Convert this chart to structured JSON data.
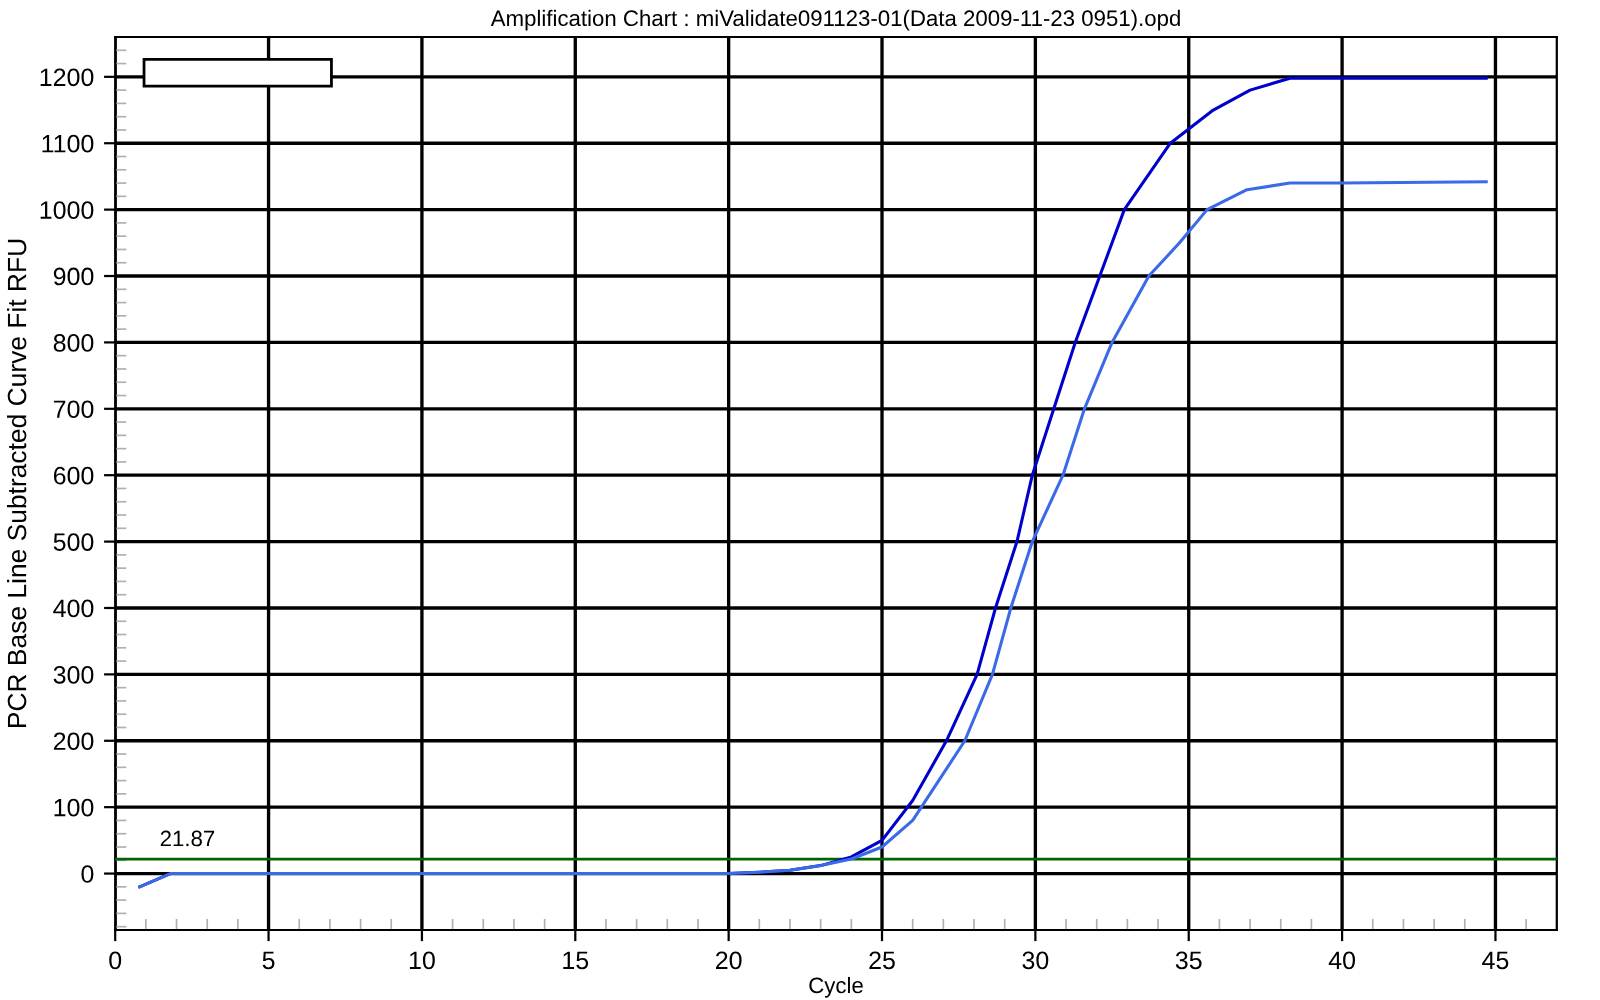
{
  "chart_data": {
    "type": "line",
    "title": "Amplification Chart : miValidate091123-01(Data 2009-11-23 0951).opd",
    "xlabel": "Cycle",
    "ylabel": "PCR Base Line Subtracted Curve Fit RFU",
    "series": [
      {
        "color": "#0000cc",
        "x": [
          0.8,
          1.8,
          5,
          10,
          15,
          20,
          21,
          22,
          23,
          24,
          25,
          26,
          27.1,
          28.1,
          28.7,
          29.4,
          29.9,
          30.6,
          31.3,
          32.1,
          32.9,
          34.4,
          35.8,
          37,
          38.3,
          40,
          44.7
        ],
        "values": [
          -20,
          0,
          0,
          0,
          0,
          0,
          2,
          5,
          12,
          25,
          50,
          110,
          200,
          300,
          400,
          500,
          600,
          700,
          800,
          900,
          1000,
          1100,
          1150,
          1180,
          1198,
          1198,
          1198
        ]
      },
      {
        "color": "#3a6ae8",
        "x": [
          0.8,
          1.8,
          5,
          10,
          15,
          20,
          21,
          22,
          23,
          24,
          25,
          26,
          27.7,
          28.6,
          29.2,
          29.9,
          30.9,
          31.6,
          32.5,
          33.7,
          34.7,
          35.6,
          36.9,
          38.3,
          40,
          44.7
        ],
        "values": [
          -20,
          0,
          0,
          0,
          0,
          0,
          2,
          5,
          12,
          22,
          40,
          80,
          200,
          300,
          400,
          500,
          600,
          700,
          800,
          900,
          950,
          1000,
          1030,
          1040,
          1040,
          1042
        ]
      }
    ],
    "ref_lines": [
      {
        "axis": "y",
        "value": 21.87,
        "label": "21.87",
        "color": "#006400"
      }
    ],
    "xlim": [
      0,
      47
    ],
    "ylim": [
      -85,
      1260
    ],
    "xticks": [
      0,
      5,
      10,
      15,
      20,
      25,
      30,
      35,
      40,
      45
    ],
    "yticks": [
      0,
      100,
      200,
      300,
      400,
      500,
      600,
      700,
      800,
      900,
      1000,
      1100,
      1200
    ],
    "grid": true,
    "marker": "none",
    "line_style": "solid"
  }
}
